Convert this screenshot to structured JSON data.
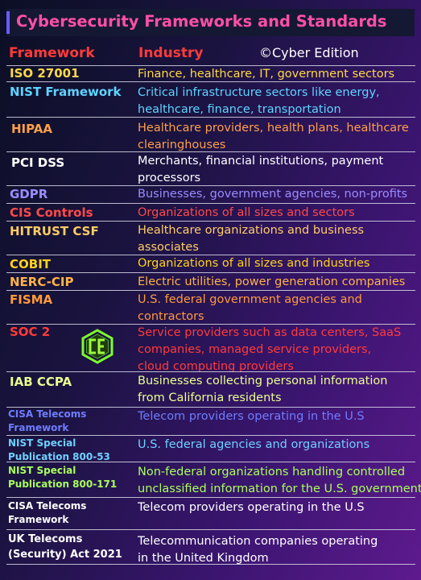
{
  "title": "Cybersecurity Frameworks and Standards",
  "headers": {
    "framework": "Framework",
    "industry": "Industry"
  },
  "watermark": "©Cyber Edition",
  "logo_icon": "ce-hexagon-logo",
  "rows": [
    {
      "framework": [
        "ISO 27001"
      ],
      "industry": [
        "Finance, healthcare, IT, government sectors"
      ],
      "fw_color": "#ffd84a",
      "ind_color": "#ffd84a"
    },
    {
      "framework": [
        "NIST Framework"
      ],
      "industry": [
        "Critical infrastructure sectors like energy,",
        "healthcare, finance, transportation"
      ],
      "fw_color": "#5fd4ff",
      "ind_color": "#5fd4ff"
    },
    {
      "framework": [
        "HIPAA"
      ],
      "industry": [
        "Healthcare providers, health plans, healthcare",
        "clearinghouses"
      ],
      "fw_color": "#ff9f4a",
      "ind_color": "#ff9f4a"
    },
    {
      "framework": [
        "PCI DSS"
      ],
      "industry": [
        "Merchants, financial institutions, payment",
        "processors"
      ],
      "fw_color": "#ffffff",
      "ind_color": "#ffffff"
    },
    {
      "framework": [
        "GDPR"
      ],
      "industry": [
        "Businesses, government agencies, non-profits"
      ],
      "fw_color": "#9b8cff",
      "ind_color": "#9b8cff"
    },
    {
      "framework": [
        "CIS Controls"
      ],
      "industry": [
        "Organizations of all sizes and sectors"
      ],
      "fw_color": "#ff4a4a",
      "ind_color": "#ff4a4a"
    },
    {
      "framework": [
        "HITRUST CSF"
      ],
      "industry": [
        "Healthcare organizations and business",
        "associates"
      ],
      "fw_color": "#ffcc66",
      "ind_color": "#ffcc66"
    },
    {
      "framework": [
        "COBIT"
      ],
      "industry": [
        "Organizations of all sizes and industries"
      ],
      "fw_color": "#ffd21a",
      "ind_color": "#ffd21a"
    },
    {
      "framework": [
        "NERC-CIP"
      ],
      "industry": [
        "Electric utilities, power generation companies"
      ],
      "fw_color": "#ffb347",
      "ind_color": "#ffb347"
    },
    {
      "framework": [
        "FISMA"
      ],
      "industry": [
        "U.S. federal government agencies and",
        "contractors"
      ],
      "fw_color": "#ff9a3c",
      "ind_color": "#ff9a3c"
    },
    {
      "framework": [
        "SOC 2"
      ],
      "industry": [
        "Service providers such as data centers, SaaS",
        "companies, managed service providers,",
        "cloud computing providers"
      ],
      "fw_color": "#ff3b3b",
      "ind_color": "#ff3b3b"
    },
    {
      "framework": [
        "IAB CCPA"
      ],
      "industry": [
        "Businesses collecting personal information",
        "from California residents"
      ],
      "fw_color": "#eaff8f",
      "ind_color": "#eaff8f"
    },
    {
      "framework": [
        "CISA Telecoms",
        "Framework"
      ],
      "industry": [
        "Telecom providers operating in the U.S"
      ],
      "fw_color": "#6f7dff",
      "ind_color": "#6f7dff"
    },
    {
      "framework": [
        "NIST Special",
        "Publication 800-53"
      ],
      "industry": [
        "U.S. federal agencies and organizations"
      ],
      "fw_color": "#6fd0ff",
      "ind_color": "#6fd0ff"
    },
    {
      "framework": [
        "NIST Special",
        "Publication 800-171"
      ],
      "industry": [
        "Non-federal organizations handling controlled",
        "unclassified information for the U.S. government"
      ],
      "fw_color": "#a8ff5c",
      "ind_color": "#a8ff5c"
    },
    {
      "framework": [
        "CISA Telecoms",
        "Framework"
      ],
      "industry": [
        "Telecom providers operating in the U.S"
      ],
      "fw_color": "#ffffff",
      "ind_color": "#ffffff"
    },
    {
      "framework": [
        "UK Telecoms",
        "(Security) Act 2021"
      ],
      "industry": [
        "Telecommunication companies operating",
        "in the United Kingdom"
      ],
      "fw_color": "#ffffff",
      "ind_color": "#ffffff"
    }
  ]
}
